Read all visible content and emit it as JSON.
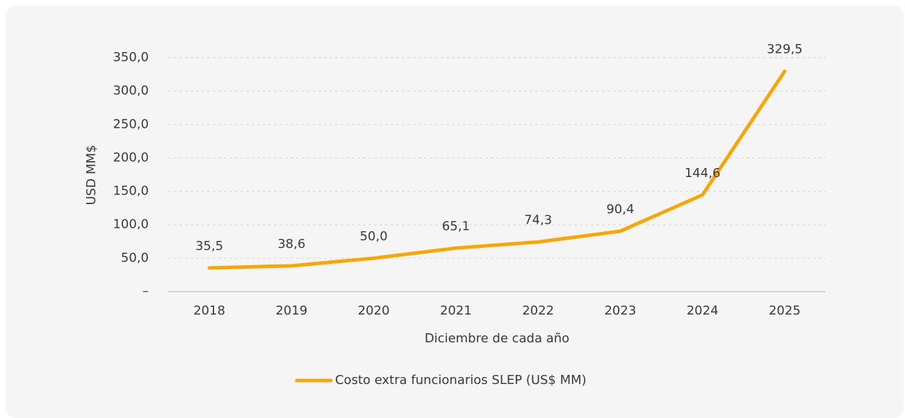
{
  "chart_data": {
    "type": "line",
    "x_label": "Diciembre de cada año",
    "y_label": "USD MM$",
    "categories": [
      "2018",
      "2019",
      "2020",
      "2021",
      "2022",
      "2023",
      "2024",
      "2025"
    ],
    "series": [
      {
        "name": "Costo extra funcionarios SLEP (US$ MM)",
        "color": "#f9a602",
        "values": [
          35.5,
          38.6,
          50.0,
          65.1,
          74.3,
          90.4,
          144.6,
          329.5
        ],
        "value_labels": [
          "35,5",
          "38,6",
          "50,0",
          "65,1",
          "74,3",
          "90,4",
          "144,6",
          "329,5"
        ]
      }
    ],
    "ylim": [
      0,
      350
    ],
    "yticks": [
      {
        "value": 0,
        "label": "–"
      },
      {
        "value": 50,
        "label": "50,0"
      },
      {
        "value": 100,
        "label": "100,0"
      },
      {
        "value": 150,
        "label": "150,0"
      },
      {
        "value": 200,
        "label": "200,0"
      },
      {
        "value": 250,
        "label": "250,0"
      },
      {
        "value": 300,
        "label": "300,0"
      },
      {
        "value": 350,
        "label": "350,0"
      }
    ],
    "grid": true,
    "legend": "bottom"
  }
}
